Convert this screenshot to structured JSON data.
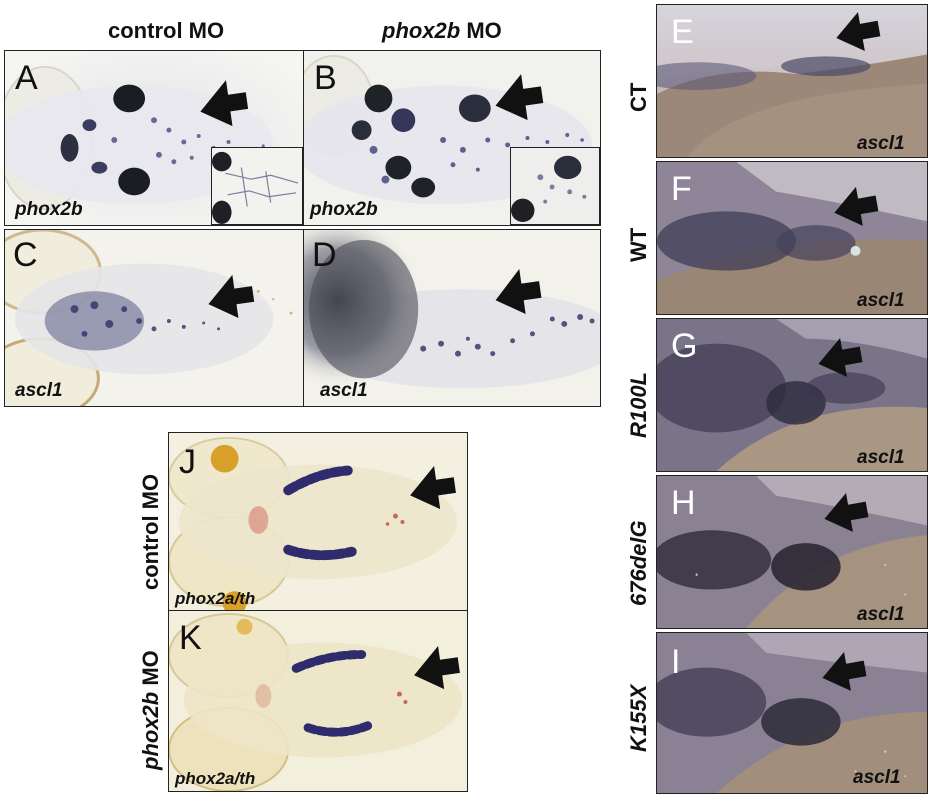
{
  "columns": {
    "control": "control MO",
    "phox2b_gene": "phox2b",
    "phox2b_suffix": " MO"
  },
  "panels": {
    "A": {
      "letter": "A",
      "label": "phox2b"
    },
    "B": {
      "letter": "B",
      "label": "phox2b"
    },
    "C": {
      "letter": "C",
      "label": "ascl1"
    },
    "D": {
      "letter": "D",
      "label": "ascl1"
    },
    "E": {
      "letter": "E",
      "label": "ascl1",
      "side": "CT"
    },
    "F": {
      "letter": "F",
      "label": "ascl1",
      "side": "WT"
    },
    "G": {
      "letter": "G",
      "label": "ascl1",
      "side": "R100L"
    },
    "H": {
      "letter": "H",
      "label": "ascl1",
      "side": "676delG"
    },
    "I": {
      "letter": "I",
      "label": "ascl1",
      "side": "K155X"
    },
    "J": {
      "letter": "J",
      "label": "phox2a/th",
      "side": "control MO"
    },
    "K": {
      "letter": "K",
      "label": "phox2a/th",
      "side_gene": "phox2b",
      "side_suffix": " MO"
    }
  }
}
